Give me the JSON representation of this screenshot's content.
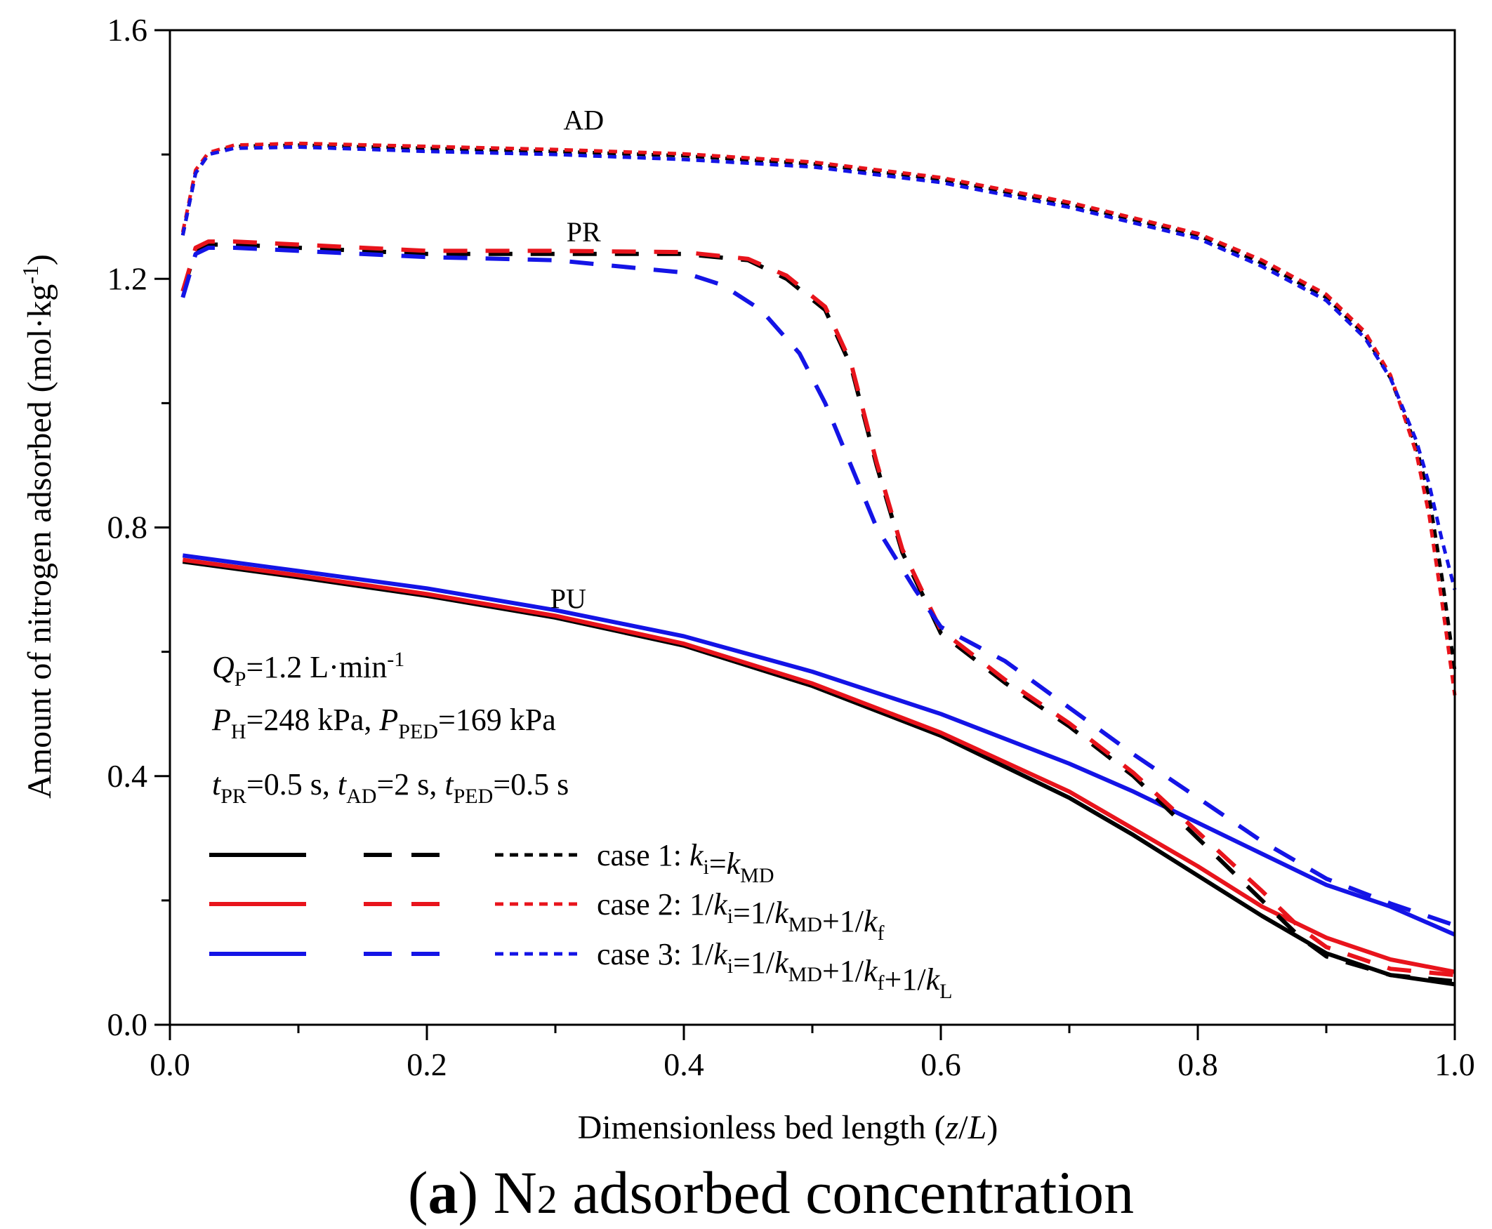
{
  "chart_data": {
    "type": "line",
    "caption": {
      "prefix": "(",
      "letter": "a",
      "suffix": ") N",
      "sub": "2",
      "rest": " adsorbed concentration"
    },
    "xlabel": {
      "text": "Dimensionless bed length (",
      "var1": "z",
      "slash": "/",
      "var2": "L",
      "close": ")"
    },
    "ylabel": {
      "text": "Amount of nitrogen adsorbed (mol·kg",
      "sup": "-1",
      "close": ")"
    },
    "xlim": [
      0.0,
      1.0
    ],
    "ylim": [
      0.0,
      1.6
    ],
    "xticks": [
      "0.0",
      "0.2",
      "0.4",
      "0.6",
      "0.8",
      "1.0"
    ],
    "yticks": [
      "0.0",
      "0.4",
      "0.8",
      "1.2",
      "1.6"
    ],
    "xtick_values": [
      0.0,
      0.2,
      0.4,
      0.6,
      0.8,
      1.0
    ],
    "ytick_values": [
      0.0,
      0.4,
      0.8,
      1.2,
      1.6
    ],
    "annotations": [
      {
        "name": "annotation-ad",
        "label": "AD",
        "x": 0.322,
        "y": 1.44
      },
      {
        "name": "annotation-pr",
        "label": "PR",
        "x": 0.322,
        "y": 1.26
      },
      {
        "name": "annotation-pu",
        "label": "PU",
        "x": 0.31,
        "y": 0.67
      }
    ],
    "conditions": {
      "qp": {
        "var": "Q",
        "sub": "P",
        "text": "=1.2 L·min",
        "sup": "-1"
      },
      "pressures": {
        "var1": "P",
        "sub1": "H",
        "text1": "=248 kPa, ",
        "var2": "P",
        "sub2": "PED",
        "text2": "=169 kPa"
      },
      "times": {
        "var1": "t",
        "sub1": "PR",
        "text1": "=0.5 s, ",
        "var2": "t",
        "sub2": "AD",
        "text2": "=2 s, ",
        "var3": "t",
        "sub3": "PED",
        "text3": "=0.5 s"
      }
    },
    "colors": {
      "case1": "#000000",
      "case2": "#e8141c",
      "case3": "#1414e6"
    },
    "legend": [
      {
        "name": "legend-case-1",
        "color": "#000000",
        "prefix": "case 1: ",
        "formula": [
          [
            "k",
            "i",
            ""
          ],
          [
            "",
            "",
            "="
          ],
          [
            "k",
            "MD",
            ""
          ]
        ]
      },
      {
        "name": "legend-case-2",
        "color": "#e8141c",
        "prefix": "case 2: ",
        "formula": [
          [
            "",
            "",
            "1/"
          ],
          [
            "k",
            "i",
            ""
          ],
          [
            "",
            "",
            "=1/"
          ],
          [
            "k",
            "MD",
            ""
          ],
          [
            "",
            "",
            "+1/"
          ],
          [
            "k",
            "f",
            ""
          ]
        ]
      },
      {
        "name": "legend-case-3",
        "color": "#1414e6",
        "prefix": "case 3: ",
        "formula": [
          [
            "",
            "",
            "1/"
          ],
          [
            "k",
            "i",
            ""
          ],
          [
            "",
            "",
            "=1/"
          ],
          [
            "k",
            "MD",
            ""
          ],
          [
            "",
            "",
            "+1/"
          ],
          [
            "k",
            "f",
            ""
          ],
          [
            "",
            "",
            "+1/"
          ],
          [
            "k",
            "L",
            ""
          ]
        ]
      }
    ],
    "series": [
      {
        "name": "case1-PU",
        "case": 1,
        "step": "PU",
        "style": "solid",
        "color": "#000000",
        "x": [
          0.01,
          0.1,
          0.2,
          0.3,
          0.4,
          0.5,
          0.6,
          0.7,
          0.75,
          0.8,
          0.85,
          0.9,
          0.95,
          1.0
        ],
        "y": [
          0.745,
          0.72,
          0.69,
          0.655,
          0.61,
          0.545,
          0.465,
          0.365,
          0.305,
          0.24,
          0.175,
          0.115,
          0.08,
          0.065
        ]
      },
      {
        "name": "case2-PU",
        "case": 2,
        "step": "PU",
        "style": "solid",
        "color": "#e8141c",
        "x": [
          0.01,
          0.1,
          0.2,
          0.3,
          0.4,
          0.5,
          0.6,
          0.7,
          0.75,
          0.8,
          0.85,
          0.9,
          0.95,
          1.0
        ],
        "y": [
          0.748,
          0.723,
          0.693,
          0.658,
          0.613,
          0.549,
          0.47,
          0.375,
          0.315,
          0.255,
          0.19,
          0.14,
          0.105,
          0.085
        ]
      },
      {
        "name": "case3-PU",
        "case": 3,
        "step": "PU",
        "style": "solid",
        "color": "#1414e6",
        "x": [
          0.01,
          0.1,
          0.2,
          0.3,
          0.4,
          0.5,
          0.6,
          0.7,
          0.75,
          0.8,
          0.85,
          0.9,
          0.95,
          1.0
        ],
        "y": [
          0.755,
          0.73,
          0.702,
          0.667,
          0.625,
          0.568,
          0.5,
          0.42,
          0.375,
          0.325,
          0.275,
          0.225,
          0.19,
          0.145
        ]
      },
      {
        "name": "case1-PR",
        "case": 1,
        "step": "PR",
        "style": "dashed",
        "color": "#000000",
        "x": [
          0.01,
          0.02,
          0.03,
          0.05,
          0.1,
          0.2,
          0.3,
          0.4,
          0.45,
          0.48,
          0.51,
          0.53,
          0.55,
          0.57,
          0.6,
          0.65,
          0.7,
          0.75,
          0.8,
          0.85,
          0.88,
          0.9,
          0.95,
          1.0
        ],
        "y": [
          1.18,
          1.245,
          1.255,
          1.255,
          1.25,
          1.24,
          1.24,
          1.24,
          1.23,
          1.2,
          1.15,
          1.06,
          0.9,
          0.76,
          0.63,
          0.55,
          0.48,
          0.4,
          0.3,
          0.2,
          0.14,
          0.11,
          0.08,
          0.07
        ]
      },
      {
        "name": "case2-PR",
        "case": 2,
        "step": "PR",
        "style": "dashed",
        "color": "#e8141c",
        "x": [
          0.01,
          0.02,
          0.03,
          0.05,
          0.1,
          0.2,
          0.3,
          0.4,
          0.45,
          0.48,
          0.51,
          0.53,
          0.55,
          0.57,
          0.6,
          0.65,
          0.7,
          0.75,
          0.8,
          0.85,
          0.88,
          0.9,
          0.95,
          1.0
        ],
        "y": [
          1.18,
          1.25,
          1.26,
          1.26,
          1.255,
          1.245,
          1.245,
          1.243,
          1.232,
          1.205,
          1.155,
          1.065,
          0.905,
          0.765,
          0.635,
          0.555,
          0.485,
          0.405,
          0.31,
          0.215,
          0.155,
          0.125,
          0.09,
          0.08
        ]
      },
      {
        "name": "case3-PR",
        "case": 3,
        "step": "PR",
        "style": "dashed",
        "color": "#1414e6",
        "x": [
          0.01,
          0.02,
          0.03,
          0.05,
          0.1,
          0.2,
          0.3,
          0.4,
          0.43,
          0.46,
          0.49,
          0.51,
          0.53,
          0.55,
          0.58,
          0.6,
          0.65,
          0.7,
          0.75,
          0.8,
          0.85,
          0.9,
          0.95,
          1.0
        ],
        "y": [
          1.17,
          1.24,
          1.25,
          1.25,
          1.245,
          1.235,
          1.23,
          1.21,
          1.19,
          1.15,
          1.08,
          1.0,
          0.9,
          0.8,
          0.7,
          0.64,
          0.585,
          0.51,
          0.435,
          0.365,
          0.295,
          0.235,
          0.195,
          0.16
        ]
      },
      {
        "name": "case1-AD",
        "case": 1,
        "step": "AD",
        "style": "dotted",
        "color": "#000000",
        "x": [
          0.01,
          0.02,
          0.03,
          0.05,
          0.1,
          0.2,
          0.3,
          0.4,
          0.5,
          0.6,
          0.7,
          0.8,
          0.85,
          0.9,
          0.93,
          0.95,
          0.97,
          0.98,
          0.99,
          1.0
        ],
        "y": [
          1.27,
          1.37,
          1.4,
          1.413,
          1.415,
          1.41,
          1.405,
          1.398,
          1.385,
          1.36,
          1.32,
          1.27,
          1.225,
          1.17,
          1.11,
          1.04,
          0.93,
          0.85,
          0.72,
          0.57
        ]
      },
      {
        "name": "case2-AD",
        "case": 2,
        "step": "AD",
        "style": "dotted",
        "color": "#e8141c",
        "x": [
          0.01,
          0.02,
          0.03,
          0.05,
          0.1,
          0.2,
          0.3,
          0.4,
          0.5,
          0.6,
          0.7,
          0.8,
          0.85,
          0.9,
          0.93,
          0.95,
          0.97,
          0.98,
          0.99,
          1.0
        ],
        "y": [
          1.275,
          1.375,
          1.403,
          1.415,
          1.418,
          1.413,
          1.408,
          1.401,
          1.388,
          1.363,
          1.323,
          1.273,
          1.23,
          1.175,
          1.115,
          1.045,
          0.92,
          0.82,
          0.68,
          0.53
        ]
      },
      {
        "name": "case3-AD",
        "case": 3,
        "step": "AD",
        "style": "dotted",
        "color": "#1414e6",
        "x": [
          0.01,
          0.02,
          0.03,
          0.05,
          0.1,
          0.2,
          0.3,
          0.4,
          0.5,
          0.6,
          0.7,
          0.8,
          0.85,
          0.9,
          0.93,
          0.95,
          0.97,
          0.98,
          0.99,
          1.0
        ],
        "y": [
          1.27,
          1.37,
          1.4,
          1.41,
          1.412,
          1.405,
          1.4,
          1.392,
          1.38,
          1.355,
          1.315,
          1.265,
          1.22,
          1.165,
          1.105,
          1.04,
          0.94,
          0.87,
          0.78,
          0.7
        ]
      }
    ]
  }
}
